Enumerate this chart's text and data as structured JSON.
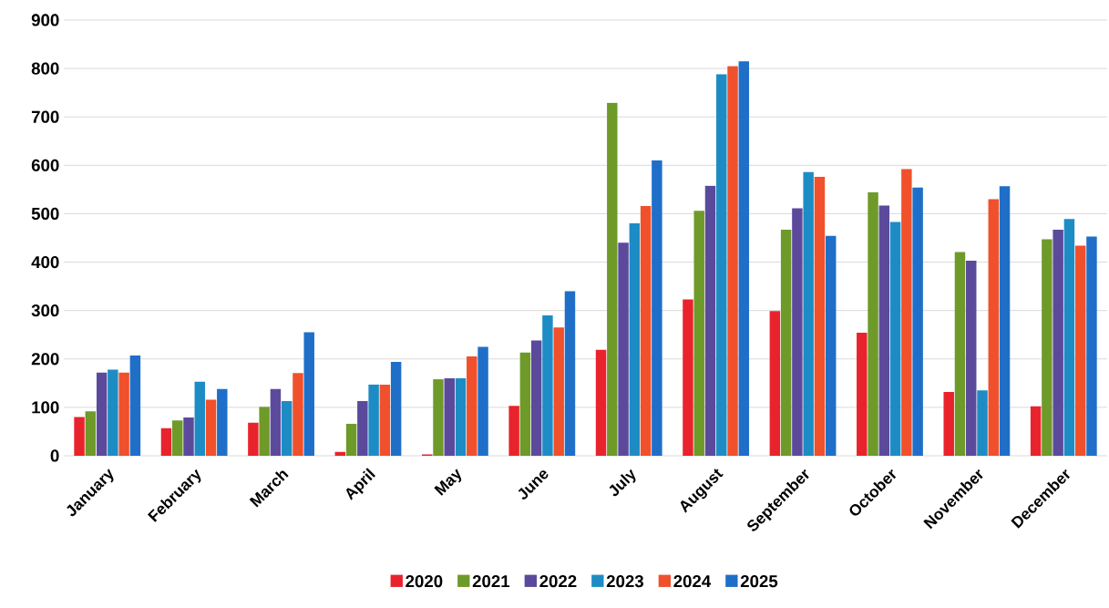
{
  "chart_data": {
    "type": "bar",
    "categories": [
      "January",
      "February",
      "March",
      "April",
      "May",
      "June",
      "July",
      "August",
      "September",
      "October",
      "November",
      "December"
    ],
    "series": [
      {
        "name": "2020",
        "color": "#e8232c",
        "values": [
          80,
          57,
          68,
          8,
          3,
          103,
          219,
          323,
          299,
          254,
          132,
          102
        ]
      },
      {
        "name": "2021",
        "color": "#6e9a2a",
        "values": [
          92,
          73,
          101,
          66,
          158,
          213,
          729,
          506,
          467,
          544,
          421,
          447
        ]
      },
      {
        "name": "2022",
        "color": "#5b4a9c",
        "values": [
          172,
          79,
          138,
          113,
          160,
          238,
          440,
          558,
          511,
          517,
          403,
          467
        ]
      },
      {
        "name": "2023",
        "color": "#1d8cc5",
        "values": [
          178,
          153,
          113,
          147,
          160,
          290,
          480,
          788,
          586,
          483,
          135,
          489
        ]
      },
      {
        "name": "2024",
        "color": "#f0502b",
        "values": [
          172,
          116,
          171,
          147,
          205,
          265,
          516,
          805,
          576,
          592,
          530,
          434
        ]
      },
      {
        "name": "2025",
        "color": "#1f6fc9",
        "values": [
          207,
          138,
          255,
          194,
          225,
          340,
          610,
          815,
          454,
          554,
          557,
          453
        ]
      }
    ],
    "ylim": [
      0,
      900
    ],
    "yticks": [
      0,
      100,
      200,
      300,
      400,
      500,
      600,
      700,
      800,
      900
    ],
    "grid": "y",
    "legend": "bottom"
  }
}
